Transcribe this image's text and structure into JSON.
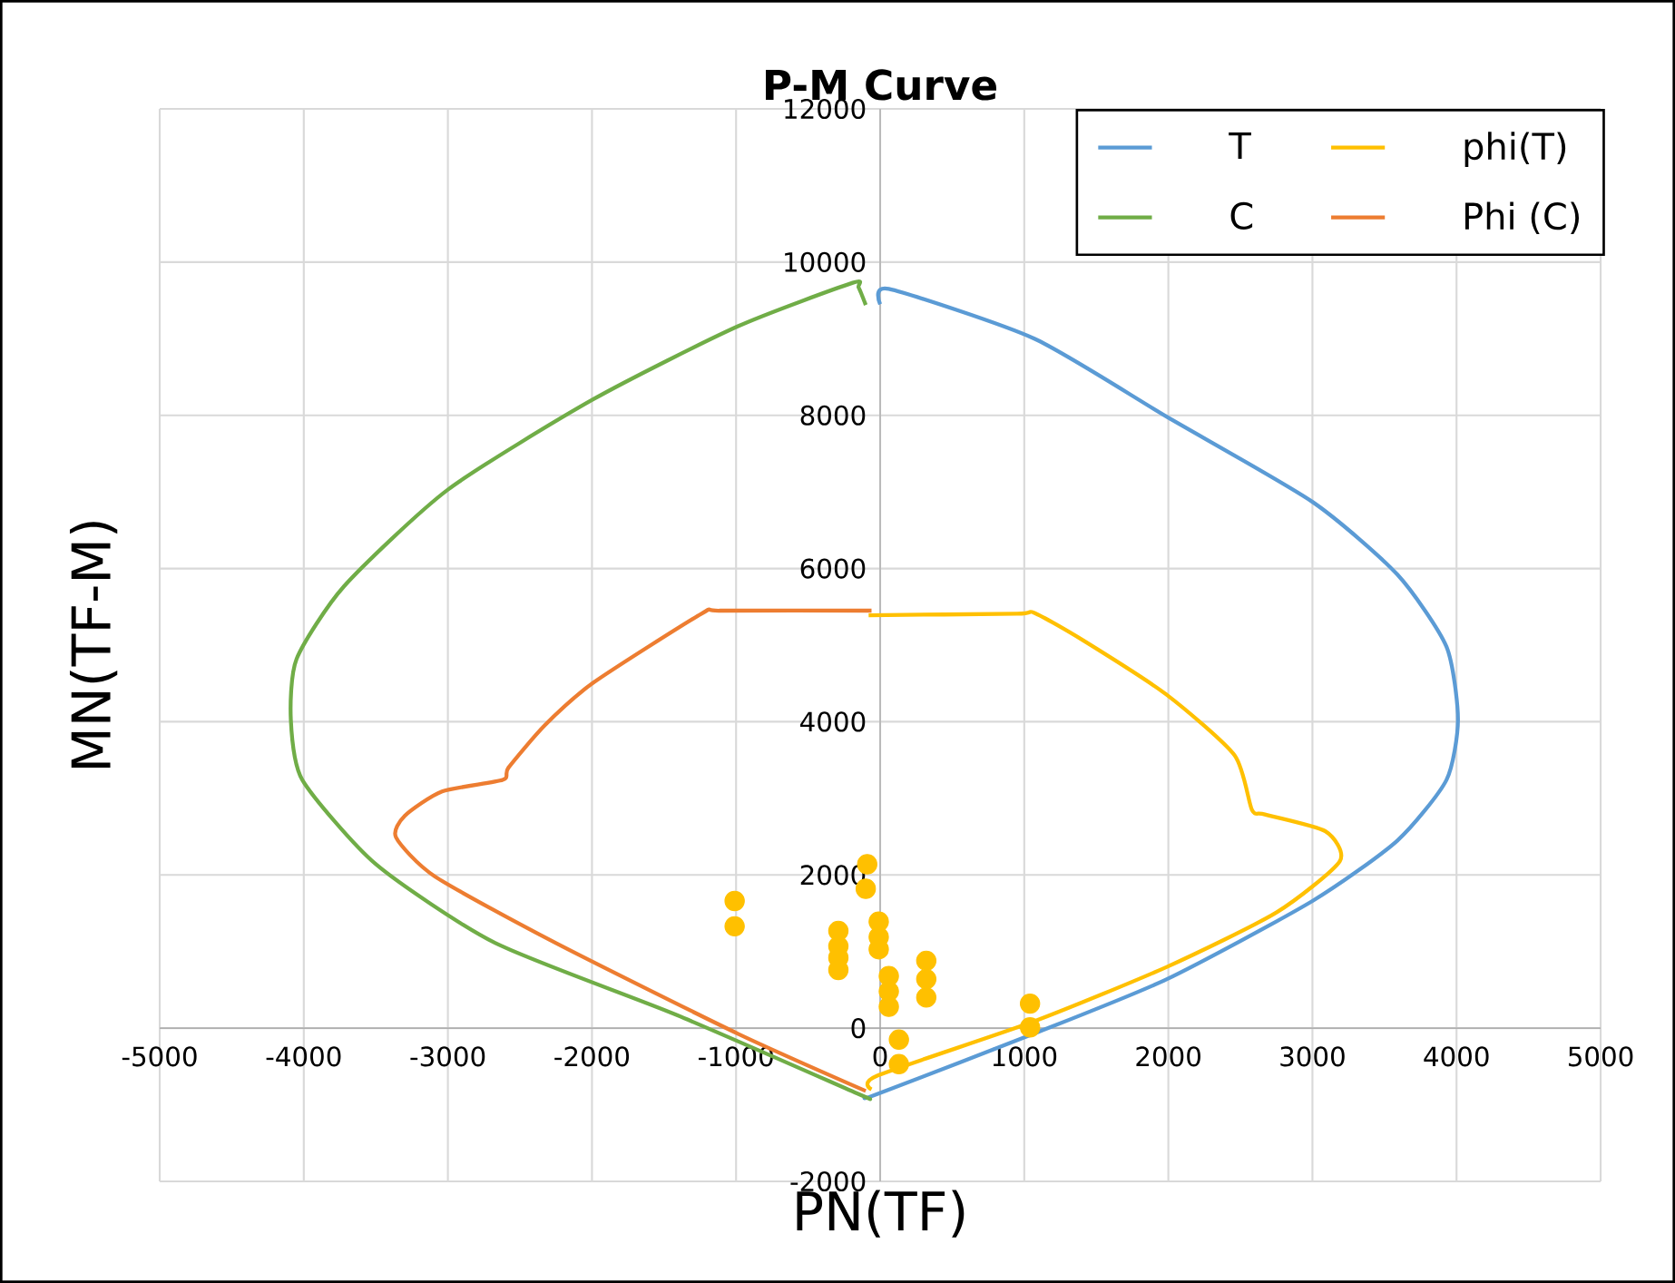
{
  "chart_data": {
    "type": "line",
    "title": "P-M Curve",
    "xlabel": "PN(TF)",
    "ylabel": "MN(TF-M)",
    "xlim": [
      -5000,
      5000
    ],
    "xticks": [
      -5000,
      -4000,
      -3000,
      -2000,
      -1000,
      0,
      1000,
      2000,
      3000,
      4000,
      5000
    ],
    "ylim": [
      -2000,
      12000
    ],
    "yticks": [
      -2000,
      0,
      2000,
      4000,
      6000,
      8000,
      10000,
      12000
    ],
    "grid": true,
    "legend": "top right",
    "series": [
      {
        "name": "T",
        "marker": "none",
        "color": "#5b9bd5",
        "x": [
          0,
          60,
          1070,
          1990,
          3000,
          3590,
          3930,
          4010,
          3930,
          3590,
          3000,
          1990,
          1070,
          -20,
          -100
        ],
        "values": [
          9450,
          9650,
          9000,
          7980,
          6870,
          5920,
          4980,
          4030,
          3240,
          2450,
          1660,
          640,
          -70,
          -860,
          -900
        ]
      },
      {
        "name": "phi(T)",
        "marker": "none",
        "color": "#ffc000",
        "x": [
          -80,
          950,
          1070,
          1410,
          1990,
          2460,
          2580,
          2670,
          3090,
          3190,
          2750,
          1990,
          1070,
          -20,
          -60
        ],
        "values": [
          5390,
          5410,
          5420,
          5060,
          4350,
          3560,
          2850,
          2790,
          2570,
          2180,
          1510,
          800,
          90,
          -620,
          -800
        ]
      },
      {
        "name": "C",
        "marker": "none",
        "color": "#70ad47",
        "x": [
          -100,
          -150,
          -190,
          -990,
          -1990,
          -3000,
          -3720,
          -4050,
          -4090,
          -4010,
          -3500,
          -2670,
          -1410,
          -150,
          -100
        ],
        "values": [
          9440,
          9670,
          9730,
          9160,
          8210,
          7030,
          5770,
          4820,
          4030,
          3240,
          2140,
          1110,
          170,
          -860,
          -900
        ]
      },
      {
        "name": "Phi (C)",
        "marker": "none",
        "color": "#ed7d31",
        "x": [
          -60,
          -1110,
          -1240,
          -1990,
          -2330,
          -2580,
          -2620,
          -3040,
          -3300,
          -3360,
          -3090,
          -2250,
          -990,
          -100
        ],
        "values": [
          5450,
          5450,
          5410,
          4510,
          3950,
          3400,
          3240,
          3090,
          2770,
          2490,
          1980,
          1110,
          -70,
          -820
        ]
      },
      {
        "type": "scatter",
        "marker": "circle",
        "color": "#ffc000",
        "x": [
          -1010,
          -1010,
          -290,
          -290,
          -290,
          -290,
          -90,
          -100,
          -10,
          -10,
          -10,
          60,
          60,
          60,
          130,
          130,
          320,
          320,
          320,
          1040,
          1040
        ],
        "values": [
          1660,
          1330,
          1270,
          1070,
          920,
          760,
          2140,
          1820,
          1390,
          1190,
          1030,
          680,
          480,
          280,
          -150,
          -470,
          880,
          640,
          400,
          320,
          10
        ]
      }
    ]
  }
}
